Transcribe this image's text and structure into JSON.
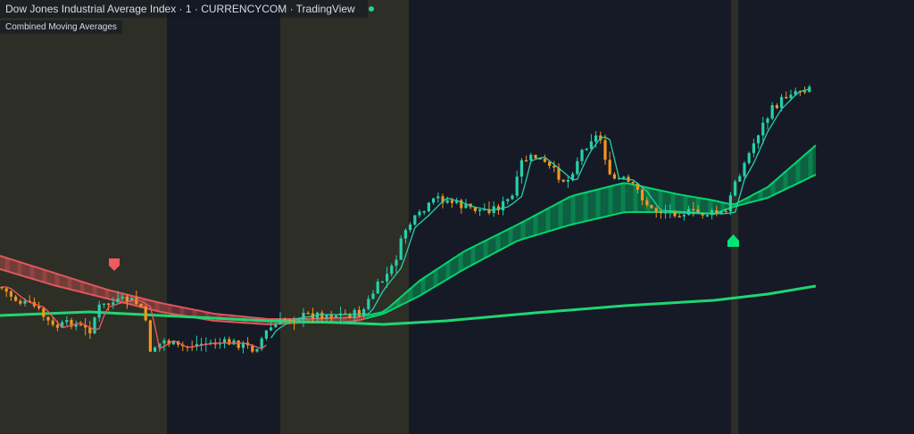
{
  "header": {
    "title": "Dow Jones Industrial Average Index · 1 · CURRENCYCOM · TradingView",
    "live_status_icon": "live-status-dot-icon"
  },
  "indicator": {
    "label": "Combined Moving Averages"
  },
  "colors": {
    "background": "#151a26",
    "session_band": "#2d2e26",
    "candle_up": "#26d0a8",
    "candle_down": "#f5951d",
    "ribbon_bull": "#00e676",
    "ribbon_bear": "#f05a5f",
    "slow_ma": "#20d672",
    "signal_buy": "#00e676",
    "signal_sell": "#f05a5f"
  },
  "signals": [
    {
      "type": "sell",
      "icon": "sell-signal-arrow-icon"
    },
    {
      "type": "buy",
      "icon": "buy-signal-arrow-icon"
    }
  ]
}
